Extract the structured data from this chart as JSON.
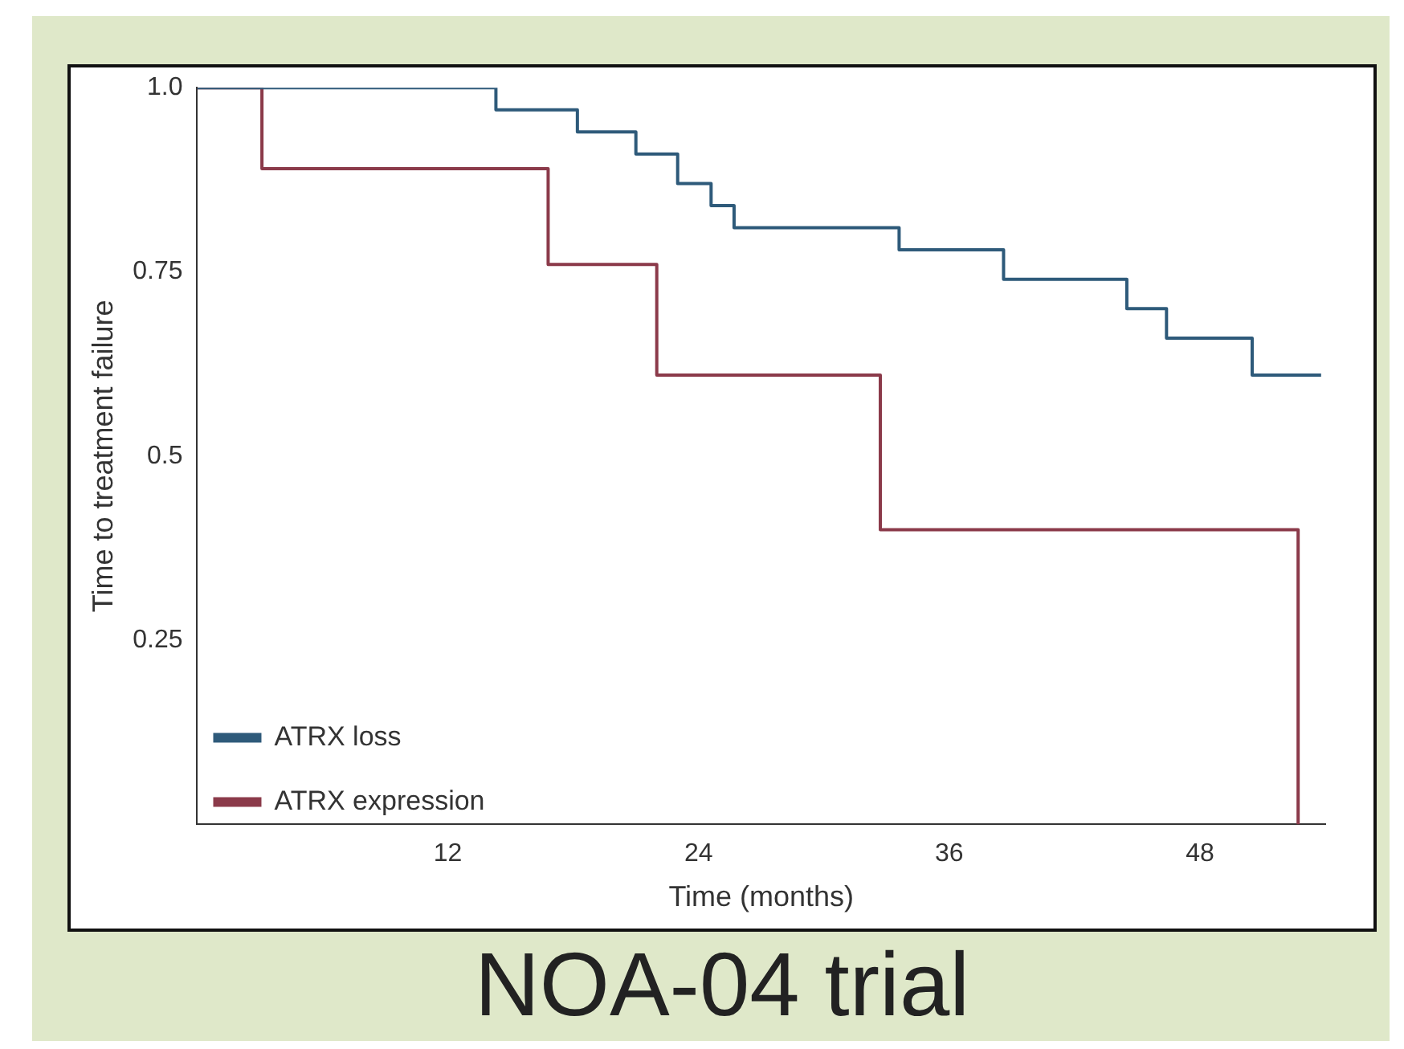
{
  "chart_data": {
    "type": "step",
    "title": "NOA-04 trial",
    "xlabel": "Time (months)",
    "ylabel": "Time to treatment failure",
    "xlim": [
      0,
      54
    ],
    "xticks": [
      12,
      24,
      36,
      48
    ],
    "ylim": [
      0,
      1
    ],
    "yticks": [
      0.25,
      {
        "value": 0.5,
        "label": "0.5"
      },
      0.75,
      {
        "value": 1,
        "label": "1.0"
      }
    ],
    "grid": false,
    "legend": "bottom left",
    "marker": "none",
    "line_style": "solid",
    "series": [
      {
        "name": "ATRX loss",
        "color": "#2e5a7a",
        "x": [
          0,
          14.3,
          18.2,
          21,
          23,
          24.6,
          25.7,
          33.6,
          38.6,
          44.5,
          46.4,
          50.5,
          53.8
        ],
        "values": [
          1,
          0.97,
          0.94,
          0.91,
          0.87,
          0.84,
          0.81,
          0.78,
          0.74,
          0.7,
          0.66,
          0.61,
          0.61
        ]
      },
      {
        "name": "ATRX expression",
        "color": "#8b3a4a",
        "x": [
          0,
          3.1,
          16.8,
          22,
          32.7,
          52.7
        ],
        "values": [
          1,
          0.89,
          0.76,
          0.61,
          0.4,
          0
        ]
      }
    ]
  }
}
